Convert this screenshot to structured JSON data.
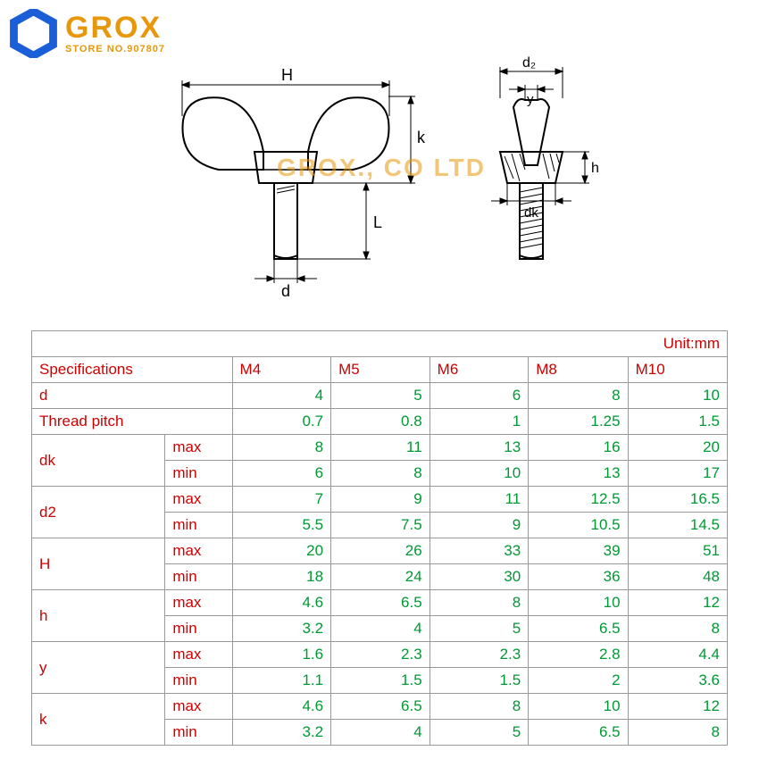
{
  "logo": {
    "main": "GROX",
    "sub": "STORE NO.907807"
  },
  "watermark": "GROX., CO LTD",
  "diagram_labels": {
    "H": "H",
    "d2": "d₂",
    "y": "y",
    "k": "k",
    "h": "h",
    "dk": "dk",
    "L": "L",
    "d": "d"
  },
  "table": {
    "unit_label": "Unit:mm",
    "spec_label": "Specifications",
    "columns": [
      "M4",
      "M5",
      "M6",
      "M8",
      "M10"
    ],
    "rows": [
      {
        "label": "d",
        "sub": null,
        "vals": [
          "4",
          "5",
          "6",
          "8",
          "10"
        ]
      },
      {
        "label": "Thread pitch",
        "sub": null,
        "vals": [
          "0.7",
          "0.8",
          "1",
          "1.25",
          "1.5"
        ]
      },
      {
        "label": "dk",
        "sub": "max",
        "vals": [
          "8",
          "11",
          "13",
          "16",
          "20"
        ]
      },
      {
        "label": "",
        "sub": "min",
        "vals": [
          "6",
          "8",
          "10",
          "13",
          "17"
        ]
      },
      {
        "label": "d2",
        "sub": "max",
        "vals": [
          "7",
          "9",
          "11",
          "12.5",
          "16.5"
        ]
      },
      {
        "label": "",
        "sub": "min",
        "vals": [
          "5.5",
          "7.5",
          "9",
          "10.5",
          "14.5"
        ]
      },
      {
        "label": "H",
        "sub": "max",
        "vals": [
          "20",
          "26",
          "33",
          "39",
          "51"
        ]
      },
      {
        "label": "",
        "sub": "min",
        "vals": [
          "18",
          "24",
          "30",
          "36",
          "48"
        ]
      },
      {
        "label": "h",
        "sub": "max",
        "vals": [
          "4.6",
          "6.5",
          "8",
          "10",
          "12"
        ]
      },
      {
        "label": "",
        "sub": "min",
        "vals": [
          "3.2",
          "4",
          "5",
          "6.5",
          "8"
        ]
      },
      {
        "label": "y",
        "sub": "max",
        "vals": [
          "1.6",
          "2.3",
          "2.3",
          "2.8",
          "4.4"
        ]
      },
      {
        "label": "",
        "sub": "min",
        "vals": [
          "1.1",
          "1.5",
          "1.5",
          "2",
          "3.6"
        ]
      },
      {
        "label": "k",
        "sub": "max",
        "vals": [
          "4.6",
          "6.5",
          "8",
          "10",
          "12"
        ]
      },
      {
        "label": "",
        "sub": "min",
        "vals": [
          "3.2",
          "4",
          "5",
          "6.5",
          "8"
        ]
      }
    ]
  },
  "colors": {
    "label": "#cc0000",
    "value": "#009933",
    "border": "#999999",
    "logo": "#e8970b",
    "hex": "#1a5fd8",
    "background": "#ffffff"
  }
}
